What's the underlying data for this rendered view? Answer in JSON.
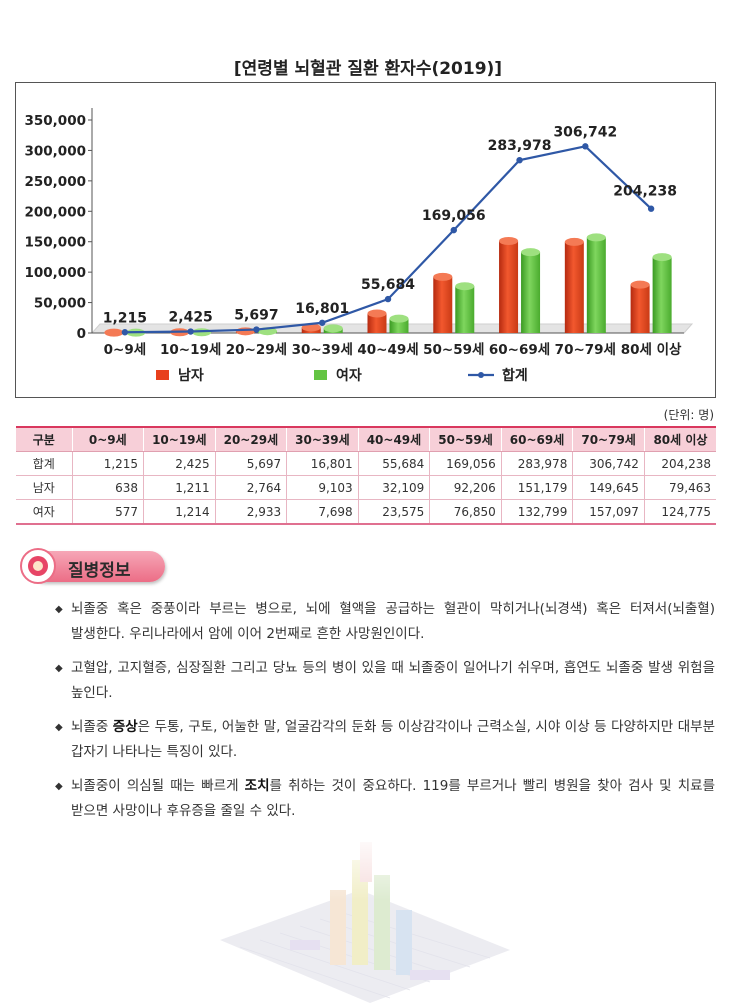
{
  "chart_data": {
    "type": "bar",
    "title": "[연령별 뇌혈관 질환 환자수(2019)]",
    "categories": [
      "0~9세",
      "10~19세",
      "20~29세",
      "30~39세",
      "40~49세",
      "50~59세",
      "60~69세",
      "70~79세",
      "80세 이상"
    ],
    "series": [
      {
        "name": "남자",
        "type": "bar",
        "color": "#e8401c",
        "values": [
          638,
          1211,
          2764,
          9103,
          32109,
          92206,
          151179,
          149645,
          79463
        ]
      },
      {
        "name": "여자",
        "type": "bar",
        "color": "#63c443",
        "values": [
          577,
          1214,
          2933,
          7698,
          23575,
          76850,
          132799,
          157097,
          124775
        ]
      },
      {
        "name": "합계",
        "type": "line",
        "color": "#2f58a6",
        "values": [
          1215,
          2425,
          5697,
          16801,
          55684,
          169056,
          283978,
          306742,
          204238
        ]
      }
    ],
    "data_labels": [
      "1,215",
      "2,425",
      "5,697",
      "16,801",
      "55,684",
      "169,056",
      "283,978",
      "306,742",
      "204,238"
    ],
    "y_ticks": [
      "0",
      "50,000",
      "100,000",
      "150,000",
      "200,000",
      "250,000",
      "300,000",
      "350,000"
    ],
    "ylim": [
      0,
      350000
    ],
    "legend_position": "bottom"
  },
  "table": {
    "unit": "(단위: 명)",
    "headers": [
      "구분",
      "0~9세",
      "10~19세",
      "20~29세",
      "30~39세",
      "40~49세",
      "50~59세",
      "60~69세",
      "70~79세",
      "80세 이상"
    ],
    "rows": [
      [
        "합계",
        "1,215",
        "2,425",
        "5,697",
        "16,801",
        "55,684",
        "169,056",
        "283,978",
        "306,742",
        "204,238"
      ],
      [
        "남자",
        "638",
        "1,211",
        "2,764",
        "9,103",
        "32,109",
        "92,206",
        "151,179",
        "149,645",
        "79,463"
      ],
      [
        "여자",
        "577",
        "1,214",
        "2,933",
        "7,698",
        "23,575",
        "76,850",
        "132,799",
        "157,097",
        "124,775"
      ]
    ]
  },
  "info": {
    "icon": "heart-circle-icon",
    "title": "질병정보",
    "items": [
      {
        "parts": [
          {
            "t": "뇌졸중 혹은 중풍이라 부르는 병으로, 뇌에 혈액을 공급하는 혈관이 막히거나(뇌경색) 혹은 터져서(뇌출혈) 발생한다. 우리나라에서 암에 이어 2번째로 흔한 사망원인이다."
          }
        ]
      },
      {
        "parts": [
          {
            "t": "고혈압, 고지혈증, 심장질환 그리고 당뇨 등의 병이 있을 때 뇌졸중이 일어나기 쉬우며, 흡연도 뇌졸중 발생 위험을 높인다."
          }
        ]
      },
      {
        "parts": [
          {
            "t": "뇌졸중 "
          },
          {
            "t": "증상",
            "b": true
          },
          {
            "t": "은 두통, 구토, 어눌한 말, 얼굴감각의 둔화 등 이상감각이나 근력소실, 시야 이상 등 다양하지만 대부분 갑자기 나타나는 특징이 있다."
          }
        ]
      },
      {
        "parts": [
          {
            "t": "뇌졸중이 의심될 때는 빠르게 "
          },
          {
            "t": "조치",
            "b": true
          },
          {
            "t": "를 취하는 것이 중요하다. 119를 부르거나 빨리 병원을 찾아 검사 및 치료를 받으면 사망이나 후유증을 줄일 수 있다."
          }
        ]
      }
    ],
    "bullet": "◆"
  },
  "decoration_icon": "faded-3d-chart-icon"
}
